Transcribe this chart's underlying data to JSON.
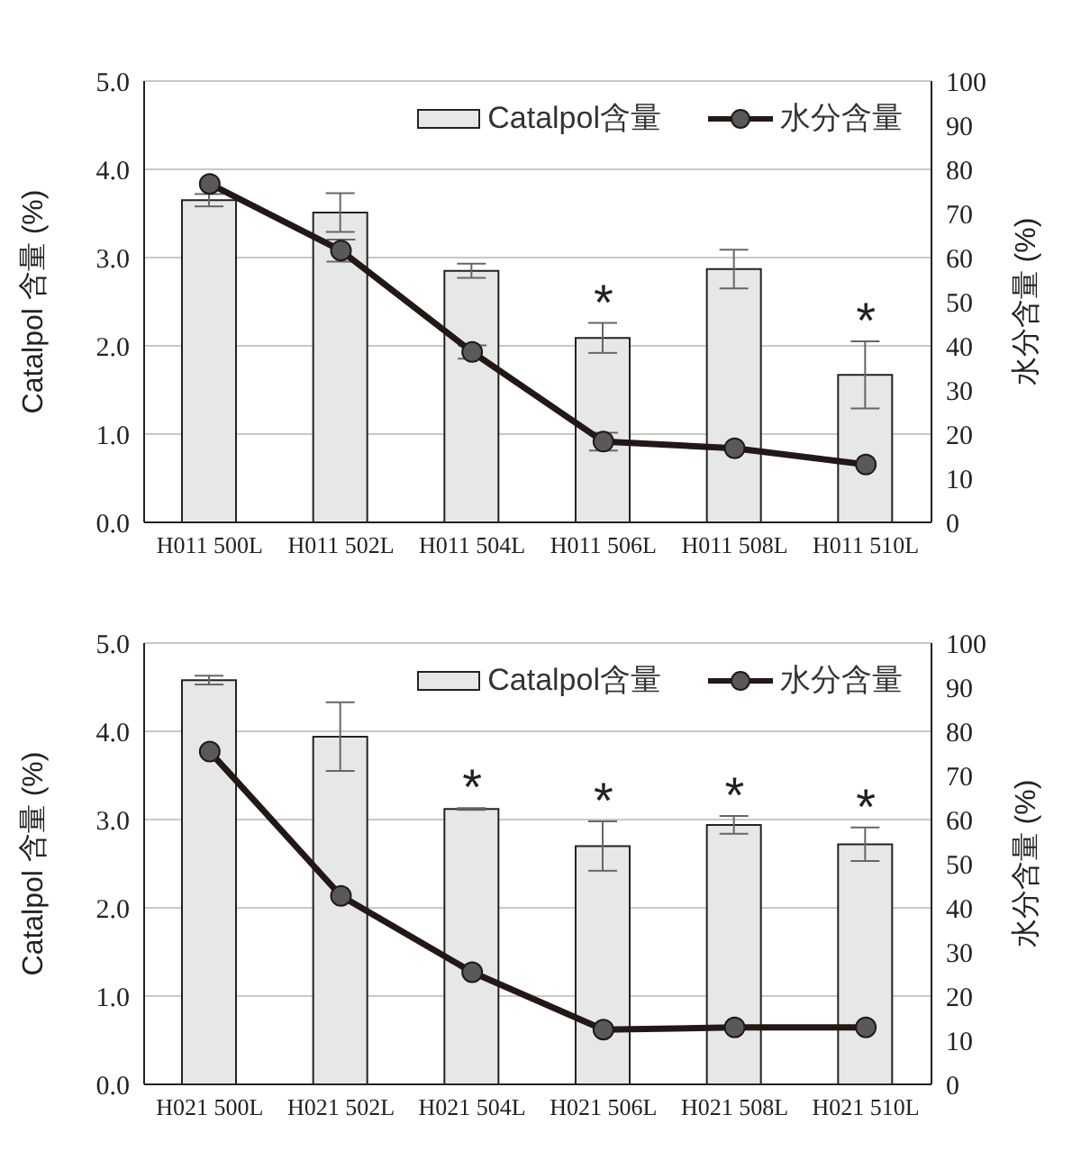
{
  "chart_data": [
    {
      "type": "bar",
      "categories": [
        "H011 500L",
        "H011 502L",
        "H011 504L",
        "H011 506L",
        "H011 508L",
        "H011 510L"
      ],
      "ylabel": "Catalpol 含量 (%)",
      "y2label": "水分含量 (%)",
      "series": [
        {
          "name": "Catalpol含量",
          "type": "bar",
          "color": "#e6e8e8",
          "values": [
            3.65,
            3.51,
            2.85,
            2.09,
            2.87,
            1.67
          ],
          "errors": [
            0.07,
            0.22,
            0.08,
            0.17,
            0.22,
            0.38
          ]
        },
        {
          "name": "水分含量",
          "type": "line",
          "axis": "y2",
          "color": "#231815",
          "values": [
            76.7,
            61.6,
            38.6,
            18.3,
            16.8,
            13.1
          ],
          "errors": [
            null,
            2.5,
            1.5,
            2,
            null,
            null
          ]
        }
      ],
      "ylim": [
        0,
        5
      ],
      "yticks": [
        {
          "value": 0,
          "label": "0.0"
        },
        {
          "value": 1,
          "label": "1.0"
        },
        {
          "value": 2,
          "label": "2.0"
        },
        {
          "value": 3,
          "label": "3.0"
        },
        {
          "value": 4,
          "label": "4.0"
        },
        {
          "value": 5,
          "label": "5.0"
        }
      ],
      "y2lim": [
        0,
        100
      ],
      "y2ticks": [
        0,
        10,
        20,
        30,
        40,
        50,
        60,
        70,
        80,
        90,
        100
      ],
      "grid": "y",
      "legend": "top right",
      "marker": "circle",
      "annotations": [
        {
          "text": "*",
          "x": "H011 506L",
          "y": 2.09
        },
        {
          "text": "*",
          "x": "H011 510L",
          "y": 1.67
        }
      ]
    },
    {
      "type": "bar",
      "categories": [
        "H021 500L",
        "H021 502L",
        "H021 504L",
        "H021 506L",
        "H021 508L",
        "H021 510L"
      ],
      "ylabel": "Catalpol 含量 (%)",
      "y2label": "水分含量 (%)",
      "series": [
        {
          "name": "Catalpol含量",
          "type": "bar",
          "color": "#e6e8e8",
          "values": [
            4.58,
            3.94,
            3.12,
            2.7,
            2.94,
            2.72
          ],
          "errors": [
            0.05,
            0.39,
            0.01,
            0.28,
            0.1,
            0.19
          ]
        },
        {
          "name": "水分含量",
          "type": "line",
          "axis": "y2",
          "color": "#231815",
          "values": [
            75.4,
            42.7,
            25.4,
            12.4,
            12.9,
            12.9
          ]
        }
      ],
      "ylim": [
        0,
        5
      ],
      "yticks": [
        {
          "value": 0,
          "label": "0.0"
        },
        {
          "value": 1,
          "label": "1.0"
        },
        {
          "value": 2,
          "label": "2.0"
        },
        {
          "value": 3,
          "label": "3.0"
        },
        {
          "value": 4,
          "label": "4.0"
        },
        {
          "value": 5,
          "label": "5.0"
        }
      ],
      "y2lim": [
        0,
        100
      ],
      "y2ticks": [
        0,
        10,
        20,
        30,
        40,
        50,
        60,
        70,
        80,
        90,
        100
      ],
      "grid": "y",
      "legend": "top right",
      "marker": "circle",
      "annotations": [
        {
          "text": "*",
          "x": "H021 504L",
          "y": 3.12
        },
        {
          "text": "*",
          "x": "H021 506L",
          "y": 2.7
        },
        {
          "text": "*",
          "x": "H021 508L",
          "y": 2.94
        },
        {
          "text": "*",
          "x": "H021 510L",
          "y": 2.72
        }
      ]
    }
  ]
}
